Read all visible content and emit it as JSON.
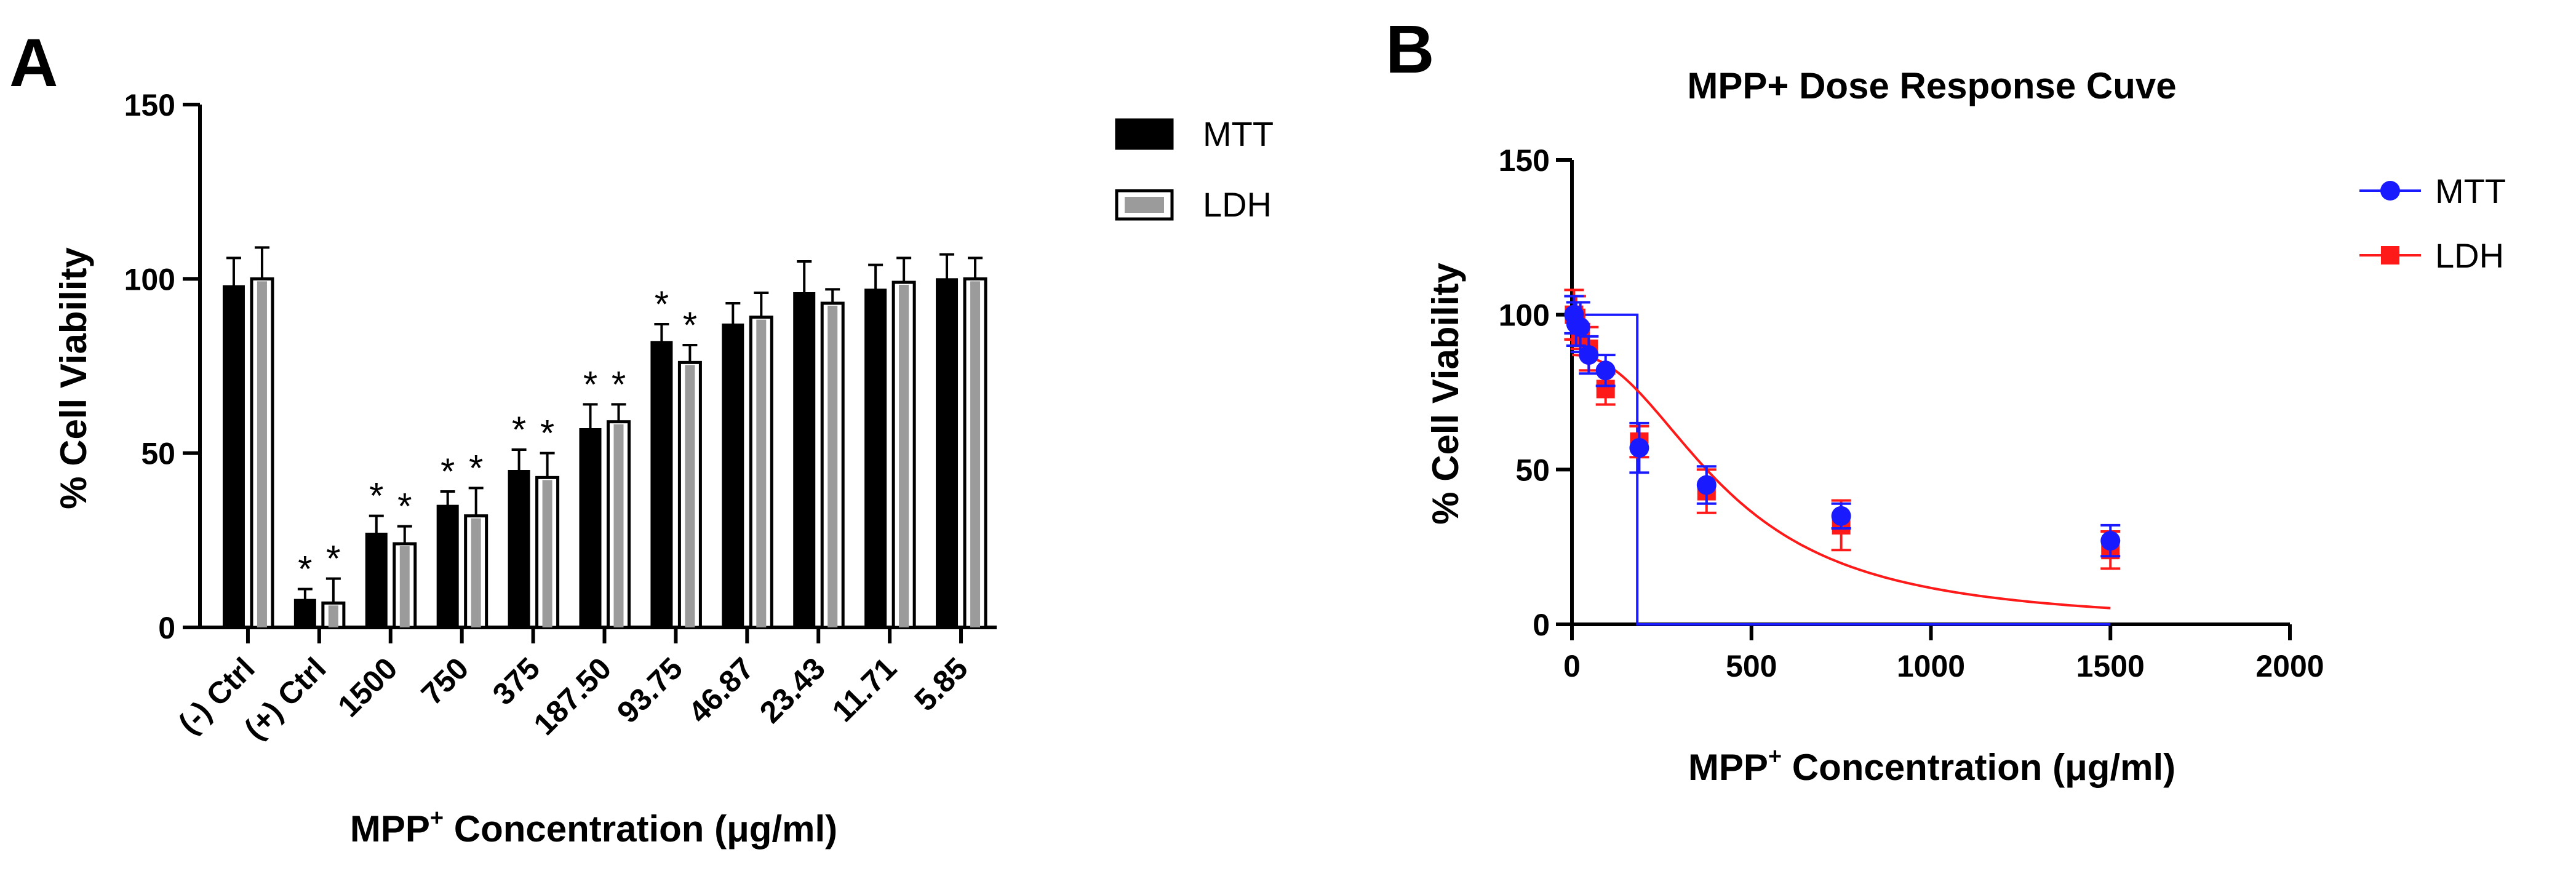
{
  "panel_a": {
    "letter": "A",
    "chart_data": {
      "type": "bar",
      "title": "",
      "xlabel": "MPP⁺ Concentration (μg/ml)",
      "xlabel_main": "MPP",
      "xlabel_sup": "+",
      "xlabel_rest": " Concentration (μg/ml)",
      "ylabel": "% Cell Viability",
      "ylim": [
        0,
        150
      ],
      "yticks": [
        0,
        50,
        100,
        150
      ],
      "categories": [
        "(-) Ctrl",
        "(+) Ctrl",
        "1500",
        "750",
        "375",
        "187.50",
        "93.75",
        "46.87",
        "23.43",
        "11.71",
        "5.85"
      ],
      "series": [
        {
          "name": "MTT",
          "color": "#000000",
          "values": [
            98,
            8,
            27,
            35,
            45,
            57,
            82,
            87,
            96,
            97,
            100
          ],
          "errors": [
            8,
            3,
            5,
            4,
            6,
            7,
            5,
            6,
            9,
            7,
            7
          ]
        },
        {
          "name": "LDH",
          "color": "#9b9b9b",
          "values": [
            100,
            7,
            24,
            32,
            43,
            59,
            76,
            89,
            93,
            99,
            100
          ],
          "errors": [
            9,
            7,
            5,
            8,
            7,
            5,
            5,
            7,
            4,
            7,
            6
          ]
        }
      ],
      "significance": [
        false,
        true,
        true,
        true,
        true,
        true,
        true,
        false,
        false,
        false,
        false
      ],
      "significance_mark": "*",
      "legend": "top-right"
    }
  },
  "panel_b": {
    "letter": "B",
    "chart_data": {
      "type": "scatter",
      "title": "MPP+ Dose Response Cuve",
      "xlabel_main": "MPP",
      "xlabel_sup": "+",
      "xlabel_rest": " Concentration (μg/ml)",
      "ylabel": "% Cell Viability",
      "xlim": [
        0,
        2000
      ],
      "ylim": [
        0,
        150
      ],
      "xticks": [
        0,
        500,
        1000,
        1500,
        2000
      ],
      "yticks": [
        0,
        50,
        100,
        150
      ],
      "series": [
        {
          "name": "MTT",
          "color": "#1a1aff",
          "marker": "circle",
          "x": [
            5.85,
            11.71,
            23.43,
            46.87,
            93.75,
            187.5,
            375,
            750,
            1500
          ],
          "y": [
            100,
            97,
            96,
            87,
            82,
            57,
            45,
            35,
            27
          ],
          "errors": [
            6,
            7,
            8,
            6,
            5,
            8,
            6,
            4,
            5
          ]
        },
        {
          "name": "LDH",
          "color": "#ff1a1a",
          "marker": "square",
          "x": [
            5.85,
            11.71,
            23.43,
            46.87,
            93.75,
            187.5,
            375,
            750,
            1500
          ],
          "y": [
            100,
            99,
            93,
            89,
            76,
            59,
            43,
            32,
            24
          ],
          "errors": [
            8,
            7,
            4,
            7,
            5,
            5,
            7,
            8,
            6
          ]
        }
      ],
      "fits": [
        {
          "name": "MTT",
          "color": "#1a1aff",
          "kind": "step",
          "top": 100,
          "bottom": 0,
          "cutoff": 182
        },
        {
          "name": "LDH",
          "color": "#ff1a1a",
          "kind": "sigmoid",
          "top": 87,
          "ec50": 430,
          "hill": 2.2
        }
      ],
      "legend": "top-right"
    }
  }
}
